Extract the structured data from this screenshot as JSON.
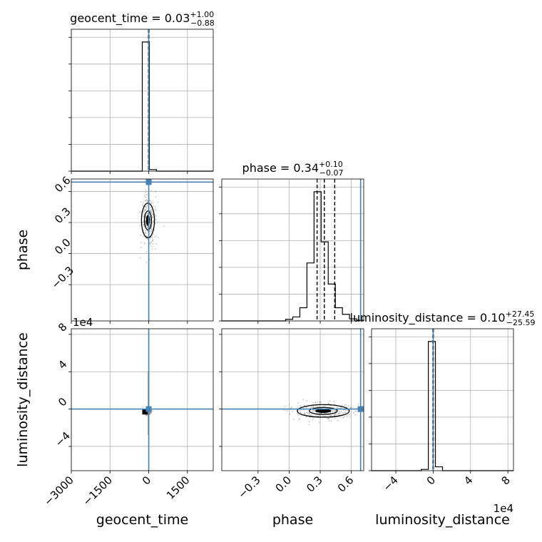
{
  "chart_data": {
    "type": "corner",
    "parameters": [
      "geocent_time",
      "phase",
      "luminosity_distance"
    ],
    "axis_labels": {
      "geocent_time": "geocent_time",
      "phase": "phase",
      "luminosity_distance": "luminosity_distance"
    },
    "offset_text": {
      "luminosity_distance": "1e4"
    },
    "ranges": {
      "geocent_time": [
        -3000,
        2500
      ],
      "phase": [
        -0.65,
        0.72
      ],
      "luminosity_distance": [
        -66000,
        86000
      ]
    },
    "ticks": {
      "geocent_time": [
        -3000,
        -1500,
        0,
        1500
      ],
      "phase": [
        -0.3,
        0.0,
        0.3,
        0.6
      ],
      "luminosity_distance": [
        -40000,
        0,
        40000,
        80000
      ]
    },
    "tick_labels": {
      "geocent_time": [
        "−3000",
        "−1500",
        "0",
        "1500"
      ],
      "phase": [
        "−0.3",
        "0.0",
        "0.3",
        "0.6"
      ],
      "luminosity_distance": [
        "−4",
        "0",
        "4",
        "8"
      ]
    },
    "truths": {
      "geocent_time": 0,
      "phase": 0.69,
      "luminosity_distance": 0
    },
    "titles": [
      {
        "param": "geocent_time",
        "label": "geocent_time",
        "median": "0.03",
        "plus": "+1.00",
        "minus": "−0.88"
      },
      {
        "param": "phase",
        "label": "phase",
        "median": "0.34",
        "plus": "+0.10",
        "minus": "−0.07"
      },
      {
        "param": "luminosity_distance",
        "label": "luminosity_distance",
        "median": "0.10",
        "plus": "+27.45",
        "minus": "−25.59"
      }
    ],
    "quantiles": {
      "geocent_time": [
        -0.85,
        0.03,
        1.03
      ],
      "phase": [
        0.27,
        0.34,
        0.44
      ],
      "luminosity_distance": [
        -25.49,
        0.1,
        27.55
      ]
    },
    "histograms": {
      "geocent_time": {
        "edges": [
          -3000,
          -2725,
          -2450,
          -2175,
          -1900,
          -1625,
          -1350,
          -1075,
          -800,
          -525,
          -250,
          25,
          300,
          575,
          850,
          1125,
          1400,
          1675,
          1950,
          2225,
          2500
        ],
        "counts": [
          0,
          0,
          0,
          0,
          0,
          0,
          0,
          0,
          0,
          0,
          1.0,
          0.012,
          0,
          0,
          0,
          0,
          0,
          0,
          0,
          0
        ]
      },
      "phase": {
        "edges": [
          -0.65,
          -0.5815,
          -0.513,
          -0.4445,
          -0.376,
          -0.3075,
          -0.239,
          -0.1705,
          -0.102,
          -0.0335,
          0.035,
          0.1035,
          0.172,
          0.2405,
          0.309,
          0.3775,
          0.446,
          0.5145,
          0.583,
          0.6515,
          0.72
        ],
        "counts": [
          0,
          0,
          0,
          0,
          0,
          0,
          0,
          0,
          0,
          0.012,
          0.03,
          0.1,
          0.44,
          0.98,
          0.6,
          0.28,
          0.1,
          0.05,
          0.016,
          0.005
        ]
      },
      "luminosity_distance": {
        "edges": [
          -66000,
          -58400,
          -50800,
          -43200,
          -35600,
          -28000,
          -20400,
          -12800,
          -5200,
          2400,
          10000,
          17600,
          25200,
          32800,
          40400,
          48000,
          55600,
          63200,
          70800,
          78400,
          86000
        ],
        "counts": [
          0,
          0,
          0,
          0,
          0,
          0,
          0,
          0.01,
          1.0,
          0.03,
          0,
          0,
          0,
          0,
          0,
          0,
          0,
          0,
          0,
          0
        ]
      }
    },
    "grid": true
  }
}
